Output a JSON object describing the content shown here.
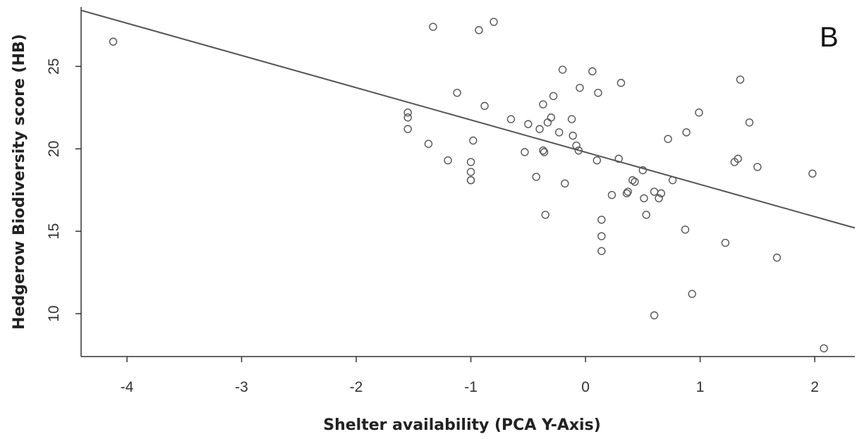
{
  "chart_data": {
    "type": "scatter",
    "panel_label": "B",
    "xlabel": "Shelter availability (PCA Y-Axis)",
    "ylabel": "Hedgerow  Biodiversity  score  (HB)",
    "xlim": [
      -4.4,
      2.35
    ],
    "ylim": [
      7.4,
      28.6
    ],
    "xticks": [
      -4,
      -3,
      -2,
      -1,
      0,
      1,
      2
    ],
    "yticks": [
      10,
      15,
      20,
      25
    ],
    "xtick_labels": [
      "-4",
      "-3",
      "-2",
      "-1",
      "0",
      "1",
      "2"
    ],
    "ytick_labels": [
      "10",
      "15",
      "20",
      "25"
    ],
    "grid": false,
    "legend": "none",
    "marker": "open-circle",
    "colors": {
      "points": "#555555",
      "line": "#555555",
      "axis": "#333333"
    },
    "fit_line": {
      "x": [
        -4.4,
        2.35
      ],
      "y": [
        28.4,
        15.2
      ]
    },
    "x": [
      -4.12,
      -1.55,
      -1.55,
      -1.55,
      -1.33,
      -1.37,
      -1.12,
      -1.2,
      -0.93,
      -0.88,
      -0.8,
      -1.0,
      -1.0,
      -1.0,
      -1.0,
      -0.98,
      -0.65,
      -0.5,
      -0.4,
      -0.37,
      -0.36,
      -0.33,
      -0.3,
      -0.28,
      -0.23,
      -0.2,
      -0.12,
      -0.11,
      -0.08,
      -0.06,
      -0.05,
      -0.43,
      -0.53,
      -0.37,
      -0.18,
      -0.35,
      0.06,
      0.11,
      0.1,
      0.31,
      0.29,
      0.14,
      0.14,
      0.14,
      0.23,
      0.36,
      0.37,
      0.41,
      0.43,
      0.5,
      0.51,
      0.53,
      0.6,
      0.64,
      0.66,
      0.72,
      0.76,
      0.87,
      0.88,
      0.93,
      0.6,
      0.99,
      1.22,
      1.3,
      1.33,
      1.35,
      1.43,
      1.5,
      1.67,
      1.98,
      2.08
    ],
    "y": [
      26.5,
      22.2,
      21.9,
      21.2,
      27.4,
      20.3,
      23.4,
      19.3,
      27.2,
      22.6,
      27.7,
      19.2,
      18.6,
      18.1,
      18.1,
      20.5,
      21.8,
      21.5,
      21.2,
      22.7,
      19.8,
      21.6,
      21.9,
      23.2,
      21.0,
      24.8,
      21.8,
      20.8,
      20.2,
      19.9,
      23.7,
      18.3,
      19.8,
      19.9,
      17.9,
      16.0,
      24.7,
      23.4,
      19.3,
      24.0,
      19.4,
      15.7,
      14.7,
      13.8,
      17.2,
      17.3,
      17.4,
      18.1,
      18.0,
      18.7,
      17.0,
      16.0,
      17.4,
      17.0,
      17.3,
      20.6,
      18.1,
      15.1,
      21.0,
      11.2,
      9.9,
      22.2,
      14.3,
      19.2,
      19.4,
      24.2,
      21.6,
      18.9,
      13.4,
      18.5,
      7.9
    ]
  }
}
